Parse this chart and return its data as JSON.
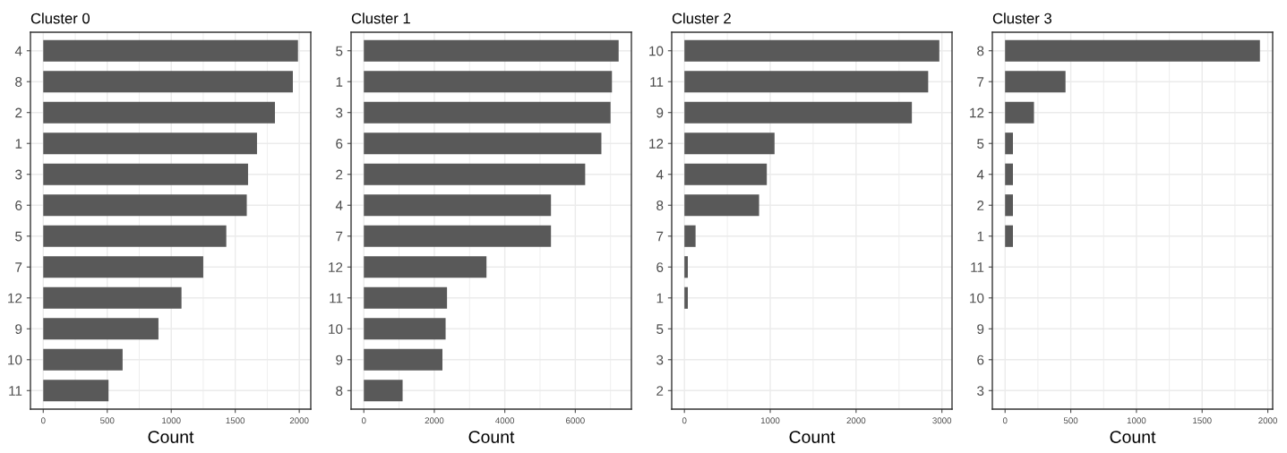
{
  "chart_data": [
    {
      "type": "bar",
      "orientation": "horizontal",
      "title": "Cluster 0",
      "xlabel": "Count",
      "color": "#595959",
      "grid": true,
      "categories": [
        "4",
        "8",
        "2",
        "1",
        "3",
        "6",
        "5",
        "7",
        "12",
        "9",
        "10",
        "11"
      ],
      "values": [
        1990,
        1950,
        1810,
        1670,
        1600,
        1590,
        1430,
        1250,
        1080,
        900,
        620,
        510
      ],
      "xlim": [
        -100,
        2090
      ],
      "xticks": [
        0,
        500,
        1000,
        1500,
        2000
      ]
    },
    {
      "type": "bar",
      "orientation": "horizontal",
      "title": "Cluster 1",
      "xlabel": "Count",
      "color": "#595959",
      "grid": true,
      "categories": [
        "5",
        "1",
        "3",
        "6",
        "2",
        "4",
        "7",
        "12",
        "11",
        "10",
        "9",
        "8"
      ],
      "values": [
        7230,
        7040,
        7000,
        6740,
        6280,
        5310,
        5310,
        3480,
        2360,
        2320,
        2230,
        1100
      ],
      "xlim": [
        -362,
        7592
      ],
      "xticks": [
        0,
        2000,
        4000,
        6000
      ]
    },
    {
      "type": "bar",
      "orientation": "horizontal",
      "title": "Cluster 2",
      "xlabel": "Count",
      "color": "#595959",
      "grid": true,
      "categories": [
        "10",
        "11",
        "9",
        "12",
        "4",
        "8",
        "7",
        "6",
        "1",
        "5",
        "3",
        "2"
      ],
      "values": [
        2970,
        2840,
        2650,
        1050,
        960,
        870,
        130,
        40,
        40,
        0,
        0,
        0
      ],
      "xlim": [
        -148,
        3118
      ],
      "xticks": [
        0,
        1000,
        2000,
        3000
      ]
    },
    {
      "type": "bar",
      "orientation": "horizontal",
      "title": "Cluster 3",
      "xlabel": "Count",
      "color": "#595959",
      "grid": true,
      "categories": [
        "8",
        "7",
        "12",
        "5",
        "4",
        "2",
        "1",
        "11",
        "10",
        "9",
        "6",
        "3"
      ],
      "values": [
        1940,
        460,
        220,
        60,
        60,
        60,
        60,
        0,
        0,
        0,
        0,
        0
      ],
      "xlim": [
        -97,
        2037
      ],
      "xticks": [
        0,
        500,
        1000,
        1500,
        2000
      ]
    }
  ]
}
